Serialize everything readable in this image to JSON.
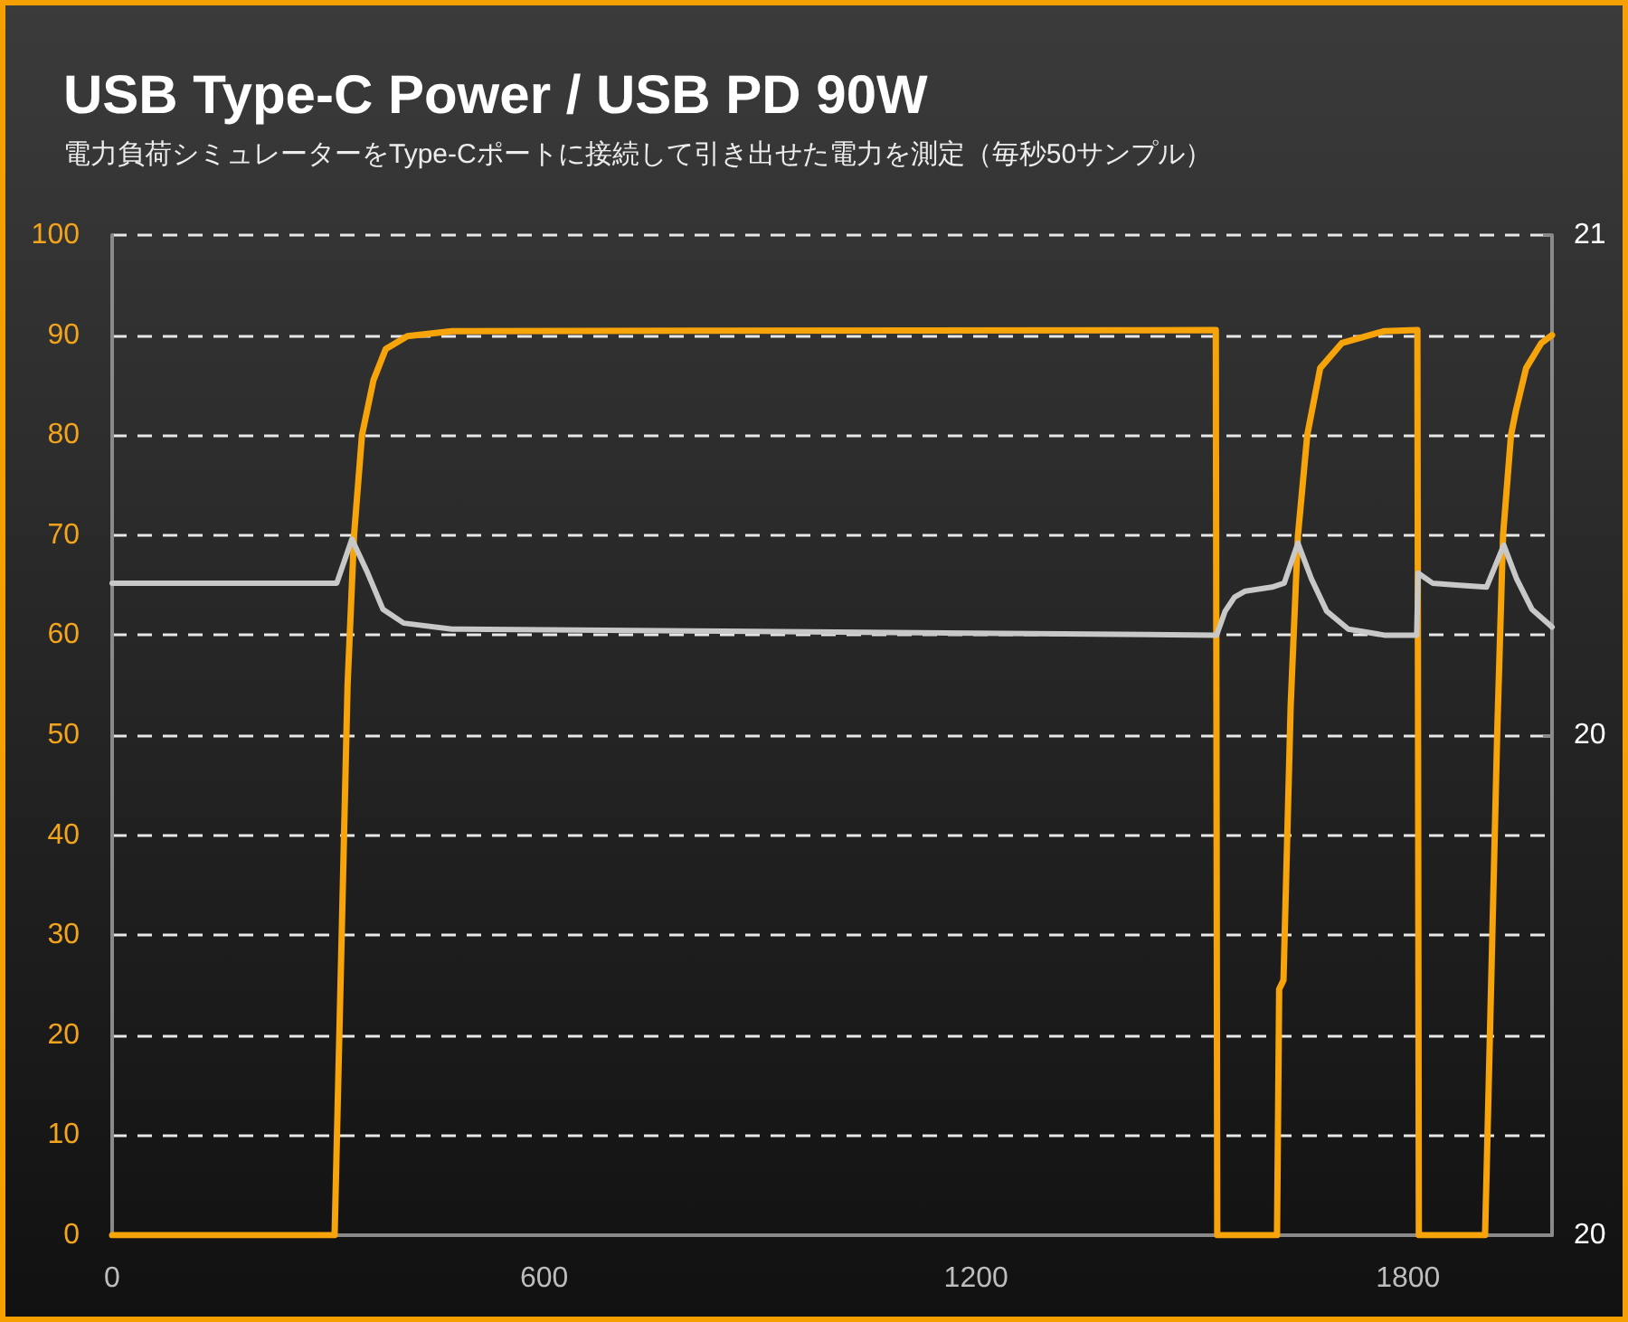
{
  "chart_data": {
    "type": "line",
    "title": "USB Type-C Power / USB PD 90W",
    "subtitle": "電力負荷シミュレーターをType-Cポートに接続して引き出せた電力を測定（毎秒50サンプル）",
    "series": [
      {
        "color": "#f7a30a",
        "x": [
          0,
          309,
          327,
          336,
          347,
          363,
          380,
          410,
          472,
          1533,
          1535,
          1618,
          1621,
          1627,
          1637,
          1647,
          1660,
          1678,
          1708,
          1767,
          1813,
          1815,
          1907,
          1924,
          1932,
          1943,
          1950,
          1964,
          1985,
          2000
        ],
        "values": [
          0,
          0,
          55,
          70,
          80,
          85.5,
          88.6,
          89.9,
          90.4,
          90.5,
          0,
          0,
          24.6,
          25.5,
          53,
          69.9,
          80,
          86.7,
          89.2,
          90.4,
          90.5,
          0,
          0,
          50.6,
          70,
          80,
          82.5,
          86.7,
          89.2,
          90
        ]
      },
      {
        "color": "#c8c8c8",
        "axis": "y2",
        "x": [
          0,
          312,
          333,
          355,
          376,
          405,
          472,
          850,
          1534,
          1546,
          1559,
          1574,
          1611,
          1628,
          1647,
          1666,
          1687,
          1717,
          1767,
          1812,
          1814,
          1834,
          1867,
          1909,
          1933,
          1951,
          1972,
          1997,
          2000
        ],
        "values": [
          20.326,
          20.326,
          20.348,
          20.331,
          20.313,
          20.306,
          20.303,
          20.302,
          20.3,
          20.312,
          20.319,
          20.322,
          20.324,
          20.326,
          20.346,
          20.328,
          20.312,
          20.303,
          20.3,
          20.3,
          20.331,
          20.326,
          20.325,
          20.324,
          20.345,
          20.328,
          20.313,
          20.305,
          20.304
        ]
      }
    ],
    "xlim": [
      0,
      2000
    ],
    "xticks": [
      0,
      600,
      1200,
      1800
    ],
    "ylim": [
      0,
      100
    ],
    "yticks": [
      0,
      10,
      20,
      30,
      40,
      50,
      60,
      70,
      80,
      90,
      100
    ],
    "y2lim": [
      20,
      20.5
    ],
    "y2ticks": [
      {
        "value": 20,
        "label": "20"
      },
      {
        "value": 20.25,
        "label": "20"
      },
      {
        "value": 20.5,
        "label": "21"
      }
    ],
    "grid": "y",
    "marker": "none",
    "line_style": "solid"
  }
}
